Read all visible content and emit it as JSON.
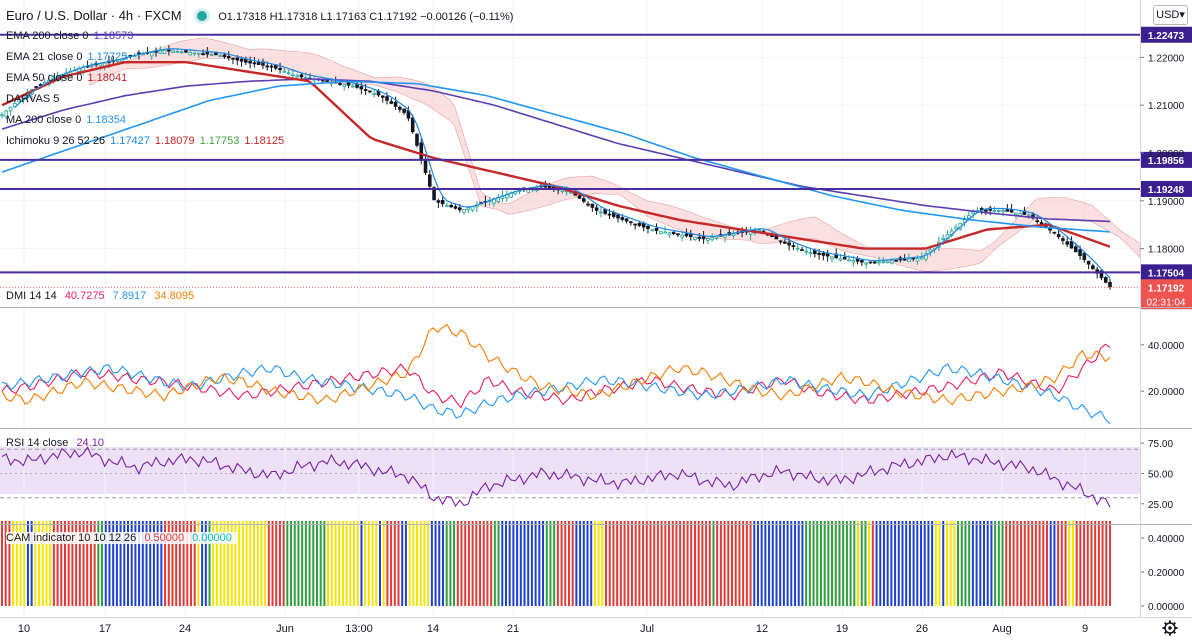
{
  "header": {
    "symbol": "Euro / U.S. Dollar · 4h · FXCM",
    "ohlc": "O1.17318  H1.17318  L1.17163  C1.17192  −0.00126 (−0.11%)",
    "currency_button": "USD▾"
  },
  "indicators_main": [
    {
      "label": "EMA 200 close 0",
      "value": "1.18573",
      "color": "#5b3fb0"
    },
    {
      "label": "EMA 21 close 0",
      "value": "1.17725",
      "color": "#1e88e5"
    },
    {
      "label": "EMA 50 close 0",
      "value": "1.18041",
      "color": "#c62828"
    },
    {
      "label": "DARVAS 5",
      "value": "",
      "color": "#9e9e9e"
    },
    {
      "label": "MA 200 close 0",
      "value": "1.18354",
      "color": "#2196f3"
    },
    {
      "label": "Ichimoku 9 26 52 26",
      "values": [
        "1.17427",
        "1.18079",
        "1.17753",
        "1.18125"
      ],
      "colors": [
        "#1e88e5",
        "#c62828",
        "#43a047",
        "#c62828"
      ]
    }
  ],
  "dmi": {
    "label": "DMI 14 14",
    "values": [
      "40.7275",
      "7.8917",
      "34.8095"
    ],
    "colors": [
      "#e91e63",
      "#2196f3",
      "#f57c00"
    ]
  },
  "rsi": {
    "label": "RSI 14 close",
    "value": "24.10",
    "color": "#7b1fa2"
  },
  "cam": {
    "label": "CAM indicator 10 10 12 26",
    "values": [
      "0.50000",
      "0.00000"
    ],
    "colors": [
      "#e53935",
      "#00bcd4"
    ]
  },
  "price_axis": {
    "ticks": [
      "1.22000",
      "1.21000",
      "1.20000",
      "1.19000",
      "1.18000"
    ],
    "levels": [
      {
        "value": 1.22473,
        "label": "1.22473"
      },
      {
        "value": 1.19856,
        "label": "1.19856"
      },
      {
        "value": 1.19248,
        "label": "1.19248"
      },
      {
        "value": 1.17504,
        "label": "1.17504"
      }
    ],
    "last_price": {
      "value": 1.17192,
      "label": "1.17192",
      "countdown": "02:31:04"
    }
  },
  "dmi_axis": [
    "40.0000",
    "20.0000"
  ],
  "rsi_axis": [
    "75.00",
    "50.00",
    "25.00"
  ],
  "cam_axis": [
    "0.40000",
    "0.20000",
    "0.00000"
  ],
  "time_axis": [
    "10",
    "17",
    "24",
    "Jun",
    "13:00",
    "14",
    "21",
    "Jul",
    "12",
    "19",
    "26",
    "Aug",
    "9"
  ],
  "settings_icon": "gear-icon",
  "chart_data": [
    {
      "type": "candlestick",
      "title": "Euro / U.S. Dollar · 4h · FXCM",
      "ylim": [
        1.168,
        1.232
      ],
      "price_series": [
        {
          "name": "close",
          "approx_points": [
            1.208,
            1.213,
            1.216,
            1.218,
            1.219,
            1.2205,
            1.2215,
            1.221,
            1.2205,
            1.219,
            1.218,
            1.216,
            1.215,
            1.214,
            1.212,
            1.208,
            1.19,
            1.188,
            1.19,
            1.192,
            1.193,
            1.192,
            1.188,
            1.186,
            1.184,
            1.183,
            1.182,
            1.183,
            1.184,
            1.181,
            1.179,
            1.178,
            1.177,
            1.1775,
            1.178,
            1.183,
            1.188,
            1.188,
            1.187,
            1.183,
            1.178,
            1.172
          ]
        },
        {
          "name": "EMA 200 close 0",
          "approx_points": [
            1.205,
            1.209,
            1.212,
            1.214,
            1.215,
            1.2155,
            1.215,
            1.213,
            1.21,
            1.206,
            1.202,
            1.199,
            1.196,
            1.193,
            1.191,
            1.189,
            1.1875,
            1.1862,
            1.1857
          ]
        },
        {
          "name": "EMA 50 close 0",
          "approx_points": [
            1.21,
            1.216,
            1.219,
            1.219,
            1.217,
            1.215,
            1.203,
            1.199,
            1.196,
            1.193,
            1.189,
            1.186,
            1.184,
            1.182,
            1.18,
            1.18,
            1.184,
            1.185,
            1.1804
          ]
        },
        {
          "name": "MA 200 close 0",
          "approx_points": [
            1.196,
            1.201,
            1.206,
            1.211,
            1.214,
            1.215,
            1.2145,
            1.212,
            1.208,
            1.204,
            1.199,
            1.195,
            1.191,
            1.188,
            1.186,
            1.1845,
            1.1835
          ]
        }
      ],
      "levels": [
        1.22473,
        1.19856,
        1.19248,
        1.17504
      ],
      "last_price": 1.17192
    },
    {
      "type": "line",
      "title": "DMI 14 14",
      "ylim": [
        5,
        55
      ],
      "series": [
        {
          "name": "DMI 14 14",
          "values": [
            20,
            22,
            25,
            28,
            27,
            25,
            24,
            22,
            20,
            18,
            20,
            22,
            24,
            26,
            28,
            30,
            18,
            15,
            25,
            20,
            18,
            16,
            20,
            22,
            25,
            22,
            20,
            18,
            22,
            25,
            20,
            18,
            16,
            18,
            20,
            22,
            25,
            28,
            24,
            20,
            30,
            40.7
          ]
        },
        {
          "name": "DMI 14 14",
          "values": [
            22,
            24,
            26,
            28,
            30,
            27,
            24,
            22,
            25,
            28,
            30,
            26,
            24,
            22,
            20,
            18,
            12,
            10,
            15,
            18,
            20,
            22,
            25,
            24,
            22,
            20,
            18,
            20,
            22,
            25,
            22,
            20,
            18,
            22,
            26,
            30,
            28,
            25,
            22,
            18,
            12,
            7.9
          ]
        },
        {
          "name": "DMI 14 14",
          "values": [
            18,
            16,
            20,
            24,
            22,
            20,
            18,
            22,
            26,
            24,
            20,
            18,
            16,
            20,
            24,
            28,
            48,
            45,
            35,
            28,
            22,
            20,
            18,
            22,
            26,
            30,
            28,
            24,
            20,
            18,
            22,
            26,
            24,
            20,
            18,
            16,
            18,
            20,
            22,
            26,
            36,
            34.8
          ]
        }
      ]
    },
    {
      "type": "line",
      "title": "RSI 14 close",
      "ylim": [
        10,
        85
      ],
      "series": [
        {
          "name": "RSI 14 close",
          "values": [
            62,
            60,
            65,
            68,
            60,
            55,
            60,
            62,
            58,
            52,
            48,
            55,
            60,
            58,
            52,
            48,
            30,
            25,
            40,
            45,
            50,
            48,
            44,
            42,
            46,
            50,
            44,
            40,
            48,
            52,
            46,
            44,
            50,
            56,
            60,
            65,
            62,
            58,
            55,
            45,
            35,
            24.1
          ]
        }
      ]
    },
    {
      "type": "bar",
      "title": "CAM indicator 10 10 12 26",
      "ylim": [
        0,
        0.5
      ],
      "values": [
        0.5,
        0.0
      ]
    }
  ]
}
